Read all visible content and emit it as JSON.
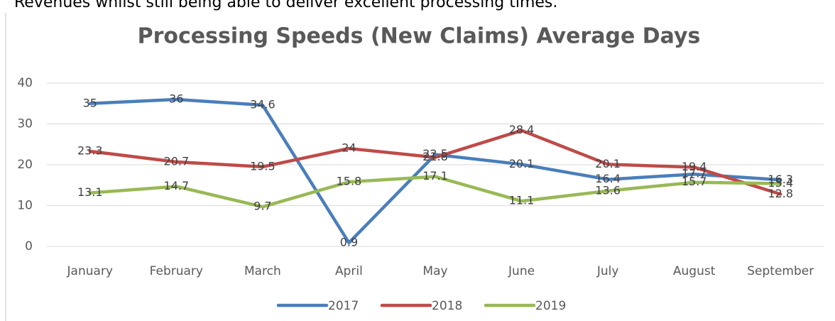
{
  "text": "Revenues whilst still being able to deliver excellent processing times.",
  "chart_data": {
    "type": "line",
    "title": "Processing Speeds (New Claims) Average Days",
    "categories": [
      "January",
      "February",
      "March",
      "April",
      "May",
      "June",
      "July",
      "August",
      "September"
    ],
    "series": [
      {
        "name": "2017",
        "color": "#4a7ebb",
        "values": [
          35,
          36,
          34.6,
          0.9,
          22.5,
          20.1,
          16.4,
          17.7,
          16.3
        ]
      },
      {
        "name": "2018",
        "color": "#be4b48",
        "values": [
          23.3,
          20.7,
          19.5,
          24,
          21.8,
          28.4,
          20.1,
          19.4,
          12.8
        ]
      },
      {
        "name": "2019",
        "color": "#98b954",
        "values": [
          13.1,
          14.7,
          9.7,
          15.8,
          17.1,
          11.1,
          13.6,
          15.7,
          15.4
        ]
      }
    ],
    "ylim": [
      0,
      40
    ],
    "yticks": [
      0,
      10,
      20,
      30,
      40
    ],
    "grid": true,
    "legend": "bottom"
  }
}
